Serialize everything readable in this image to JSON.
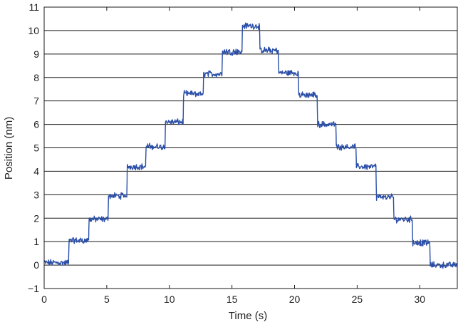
{
  "chart_data": {
    "type": "line",
    "title": "",
    "xlabel": "Time (s)",
    "ylabel": "Position (nm)",
    "xlim": [
      0,
      33
    ],
    "ylim": [
      -1,
      11
    ],
    "xticks": [
      0,
      5,
      10,
      15,
      20,
      25,
      30
    ],
    "yticks": [
      -1,
      0,
      1,
      2,
      3,
      4,
      5,
      6,
      7,
      8,
      9,
      10,
      11
    ],
    "grid": "horizontal",
    "series": [
      {
        "color": "#2b4fa8",
        "steps": [
          {
            "t_start": 0.0,
            "t_end": 1.95,
            "position": 0.1
          },
          {
            "t_start": 1.95,
            "t_end": 3.55,
            "position": 1.05
          },
          {
            "t_start": 3.55,
            "t_end": 5.1,
            "position": 1.95
          },
          {
            "t_start": 5.1,
            "t_end": 6.6,
            "position": 2.95
          },
          {
            "t_start": 6.6,
            "t_end": 8.1,
            "position": 4.2
          },
          {
            "t_start": 8.1,
            "t_end": 9.65,
            "position": 5.05
          },
          {
            "t_start": 9.65,
            "t_end": 11.1,
            "position": 6.1
          },
          {
            "t_start": 11.1,
            "t_end": 12.7,
            "position": 7.3
          },
          {
            "t_start": 12.7,
            "t_end": 14.2,
            "position": 8.15
          },
          {
            "t_start": 14.2,
            "t_end": 15.8,
            "position": 9.1
          },
          {
            "t_start": 15.8,
            "t_end": 17.2,
            "position": 10.2
          },
          {
            "t_start": 17.2,
            "t_end": 18.7,
            "position": 9.15
          },
          {
            "t_start": 18.7,
            "t_end": 20.3,
            "position": 8.2
          },
          {
            "t_start": 20.3,
            "t_end": 21.8,
            "position": 7.25
          },
          {
            "t_start": 21.8,
            "t_end": 23.3,
            "position": 6.0
          },
          {
            "t_start": 23.3,
            "t_end": 24.9,
            "position": 5.05
          },
          {
            "t_start": 24.9,
            "t_end": 26.5,
            "position": 4.2
          },
          {
            "t_start": 26.5,
            "t_end": 27.9,
            "position": 2.9
          },
          {
            "t_start": 27.9,
            "t_end": 29.4,
            "position": 1.95
          },
          {
            "t_start": 29.4,
            "t_end": 30.8,
            "position": 0.95
          },
          {
            "t_start": 30.8,
            "t_end": 33.0,
            "position": 0.0
          }
        ]
      }
    ]
  }
}
